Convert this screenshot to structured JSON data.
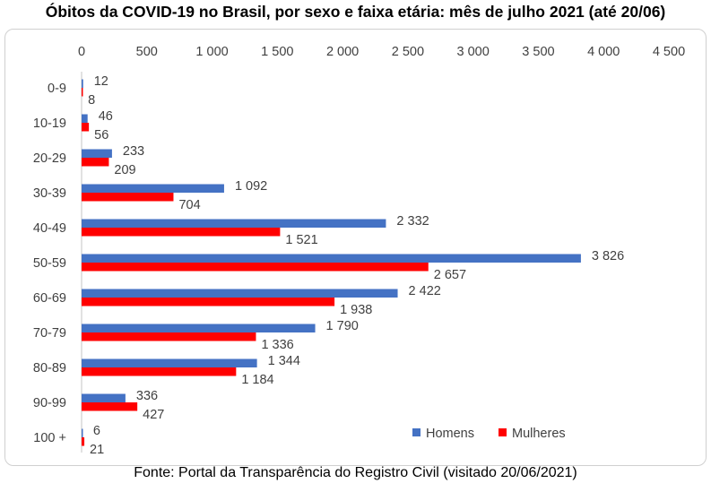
{
  "chart_data": {
    "type": "bar",
    "orientation": "horizontal",
    "title": "Óbitos da COVID-19 no Brasil, por sexo e faixa etária: mês de julho 2021 (até 20/06)",
    "source": "Fonte: Portal da Transparência do Registro Civil (visitado 20/06/2021)",
    "categories": [
      "0-9",
      "10-19",
      "20-29",
      "30-39",
      "40-49",
      "50-59",
      "60-69",
      "70-79",
      "80-89",
      "90-99",
      "100 +"
    ],
    "series": [
      {
        "name": "Homens",
        "color": "#4472C4",
        "values": [
          12,
          46,
          233,
          1092,
          2332,
          3826,
          2422,
          1790,
          1344,
          336,
          6
        ]
      },
      {
        "name": "Mulheres",
        "color": "#FF0000",
        "values": [
          8,
          56,
          209,
          704,
          1521,
          2657,
          1938,
          1336,
          1184,
          427,
          21
        ]
      }
    ],
    "xlim": [
      0,
      4500
    ],
    "xticks": [
      0,
      500,
      1000,
      1500,
      2000,
      2500,
      3000,
      3500,
      4000,
      4500
    ],
    "xtick_labels": [
      "0",
      "500",
      "1 000",
      "1 500",
      "2 000",
      "2 500",
      "3 000",
      "3 500",
      "4 000",
      "4 500"
    ],
    "axis_position": "top",
    "grid": false,
    "legend": "bottom-right"
  }
}
